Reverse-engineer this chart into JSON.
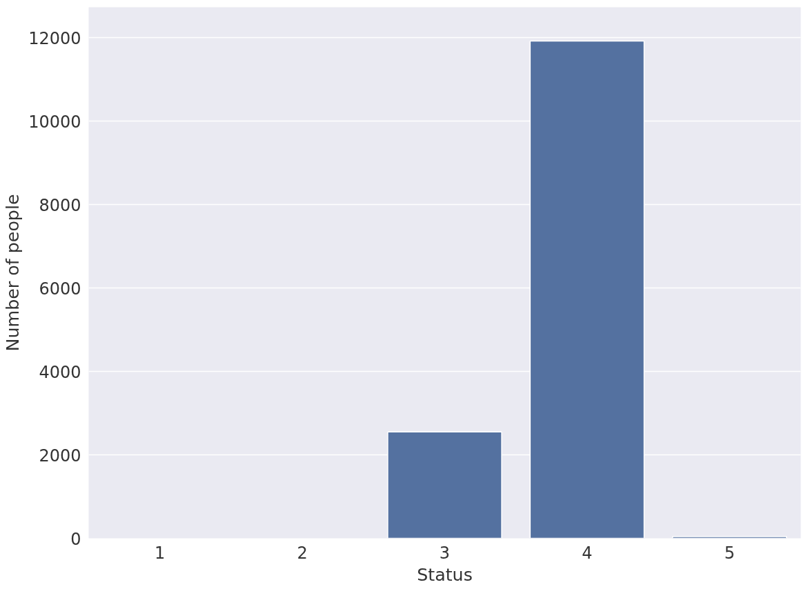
{
  "chart_data": {
    "type": "bar",
    "xlabel": "Status",
    "ylabel": "Number of people",
    "categories": [
      "1",
      "2",
      "3",
      "4",
      "5"
    ],
    "values": [
      null,
      null,
      2550,
      11920,
      40
    ],
    "color": "#5471a0",
    "ylim": [
      0,
      12730
    ],
    "yticks": [
      0,
      2000,
      4000,
      6000,
      8000,
      10000,
      12000
    ],
    "grid": "y"
  }
}
